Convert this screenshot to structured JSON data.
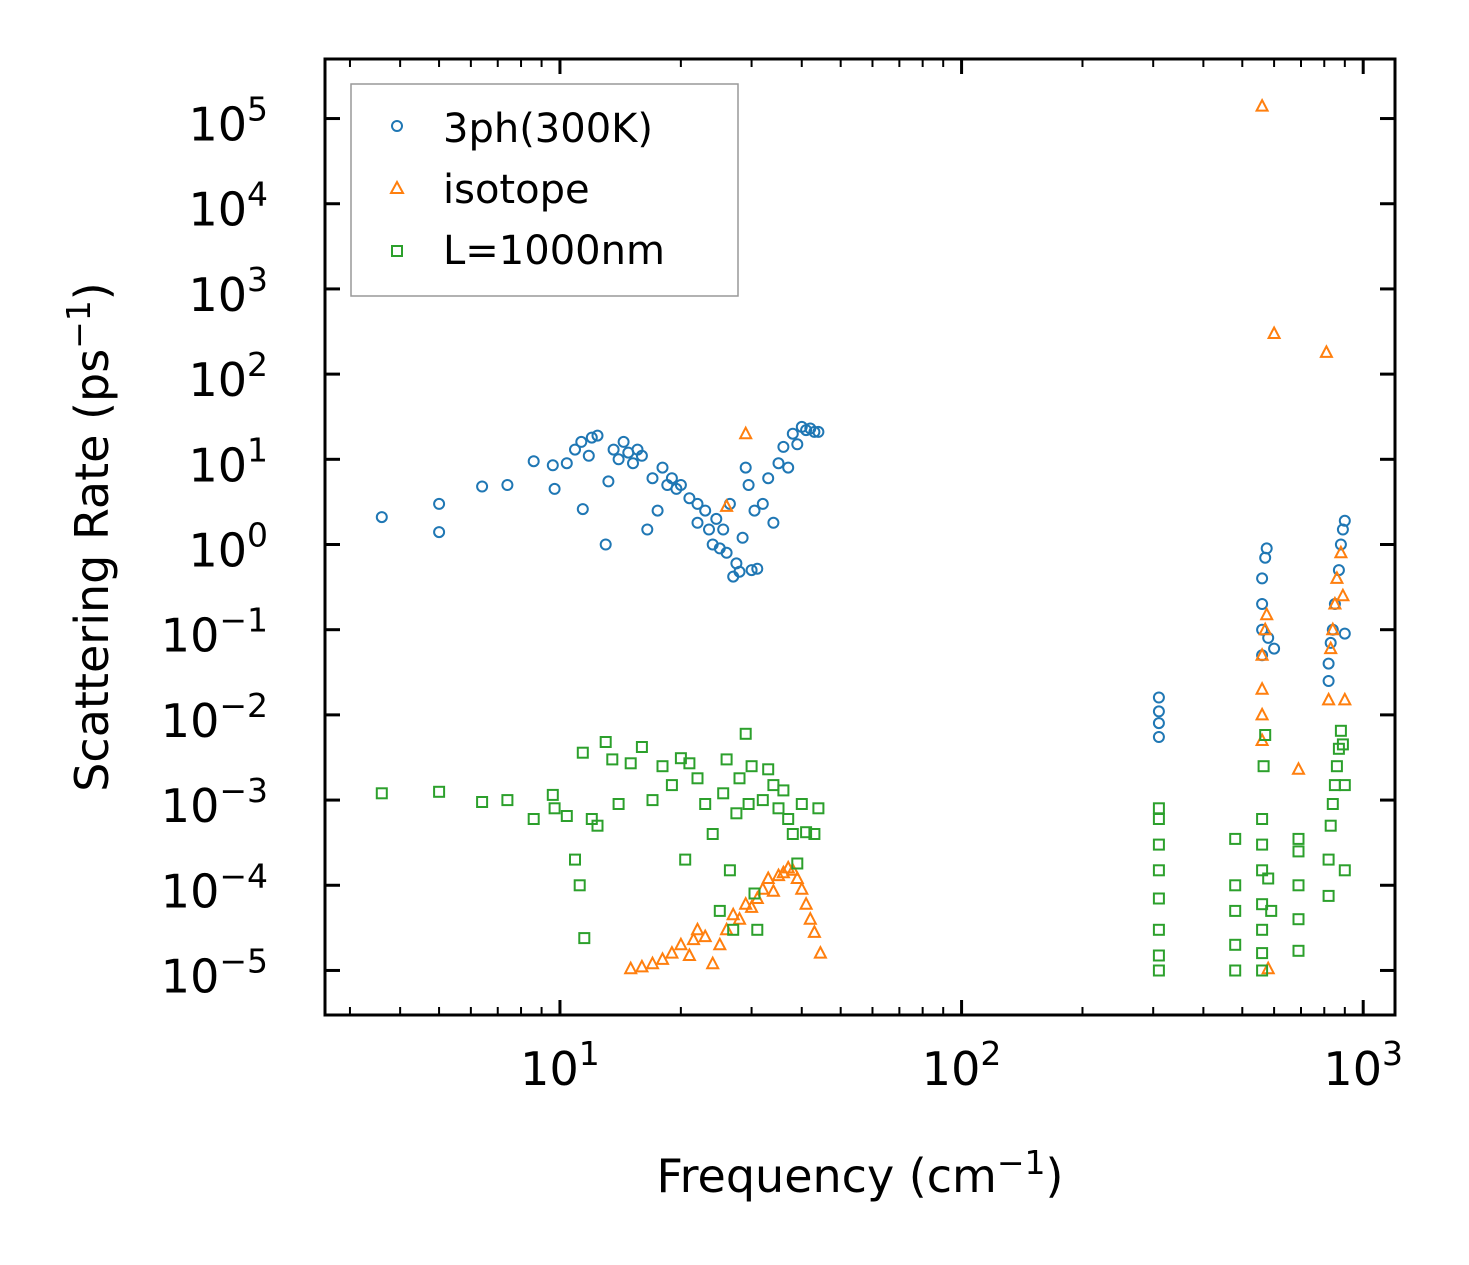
{
  "chart_data": {
    "type": "scatter",
    "title": "",
    "xscale": "log",
    "yscale": "log",
    "xlim": [
      2.6,
      1200
    ],
    "ylim": [
      3e-06,
      500000
    ],
    "xlabel": {
      "text": "Frequency (cm",
      "sup": "−1",
      "close": ")"
    },
    "ylabel": {
      "text": "Scattering Rate (ps",
      "sup": "−1",
      "close": ")"
    },
    "x_ticks": [
      {
        "value": 10,
        "base": "10",
        "exp": "1"
      },
      {
        "value": 100,
        "base": "10",
        "exp": "2"
      },
      {
        "value": 1000,
        "base": "10",
        "exp": "3"
      }
    ],
    "y_ticks": [
      {
        "value": 1e-05,
        "base": "10",
        "exp": "−5"
      },
      {
        "value": 0.0001,
        "base": "10",
        "exp": "−4"
      },
      {
        "value": 0.001,
        "base": "10",
        "exp": "−3"
      },
      {
        "value": 0.01,
        "base": "10",
        "exp": "−2"
      },
      {
        "value": 0.1,
        "base": "10",
        "exp": "−1"
      },
      {
        "value": 1,
        "base": "10",
        "exp": "0"
      },
      {
        "value": 10,
        "base": "10",
        "exp": "1"
      },
      {
        "value": 100,
        "base": "10",
        "exp": "2"
      },
      {
        "value": 1000,
        "base": "10",
        "exp": "3"
      },
      {
        "value": 10000,
        "base": "10",
        "exp": "4"
      },
      {
        "value": 100000,
        "base": "10",
        "exp": "5"
      }
    ],
    "legend_position": "top-left",
    "series": [
      {
        "name": "3ph(300K)",
        "marker": "circle",
        "color": "#1f77b4",
        "points": [
          [
            3.6,
            2.1
          ],
          [
            5.0,
            3.0
          ],
          [
            5.0,
            1.4
          ],
          [
            6.4,
            4.8
          ],
          [
            7.4,
            5.0
          ],
          [
            8.6,
            9.5
          ],
          [
            9.6,
            8.5
          ],
          [
            9.7,
            4.5
          ],
          [
            10.4,
            9.0
          ],
          [
            10.9,
            13.0
          ],
          [
            11.3,
            16.0
          ],
          [
            11.4,
            2.6
          ],
          [
            11.8,
            11.0
          ],
          [
            12.0,
            18.0
          ],
          [
            12.4,
            19.0
          ],
          [
            13.0,
            1.0
          ],
          [
            13.2,
            5.5
          ],
          [
            13.6,
            13.0
          ],
          [
            14.0,
            10.0
          ],
          [
            14.4,
            16.0
          ],
          [
            14.8,
            12.0
          ],
          [
            15.2,
            9.0
          ],
          [
            15.6,
            13.0
          ],
          [
            16.0,
            11.0
          ],
          [
            16.5,
            1.5
          ],
          [
            17.0,
            6.0
          ],
          [
            17.5,
            2.5
          ],
          [
            18.0,
            8.0
          ],
          [
            18.5,
            5.0
          ],
          [
            19.0,
            6.0
          ],
          [
            19.5,
            4.5
          ],
          [
            20.0,
            5.0
          ],
          [
            21.0,
            3.5
          ],
          [
            22.0,
            3.0
          ],
          [
            22.0,
            1.8
          ],
          [
            23.0,
            2.5
          ],
          [
            23.5,
            1.5
          ],
          [
            24.0,
            1.0
          ],
          [
            24.5,
            2.0
          ],
          [
            25.0,
            0.9
          ],
          [
            25.5,
            1.5
          ],
          [
            26.0,
            0.8
          ],
          [
            26.5,
            3.0
          ],
          [
            27.0,
            0.42
          ],
          [
            27.5,
            0.6
          ],
          [
            28.0,
            0.48
          ],
          [
            28.5,
            1.2
          ],
          [
            29.0,
            8.0
          ],
          [
            29.5,
            5.0
          ],
          [
            30.0,
            0.5
          ],
          [
            30.5,
            2.5
          ],
          [
            31.0,
            0.52
          ],
          [
            32.0,
            3.0
          ],
          [
            33.0,
            6.0
          ],
          [
            34.0,
            1.8
          ],
          [
            35.0,
            9.0
          ],
          [
            36.0,
            14.0
          ],
          [
            37.0,
            8.0
          ],
          [
            38.0,
            20.0
          ],
          [
            39.0,
            15.0
          ],
          [
            40.0,
            24.0
          ],
          [
            41.0,
            22.0
          ],
          [
            42.0,
            23.0
          ],
          [
            43.0,
            21.0
          ],
          [
            44.0,
            21.0
          ],
          [
            310,
            0.0055
          ],
          [
            310,
            0.008
          ],
          [
            310,
            0.011
          ],
          [
            310,
            0.016
          ],
          [
            560,
            0.05
          ],
          [
            560,
            0.1
          ],
          [
            560,
            0.2
          ],
          [
            560,
            0.4
          ],
          [
            570,
            0.7
          ],
          [
            575,
            0.9
          ],
          [
            580,
            0.08
          ],
          [
            600,
            0.06
          ],
          [
            820,
            0.025
          ],
          [
            820,
            0.04
          ],
          [
            830,
            0.07
          ],
          [
            840,
            0.1
          ],
          [
            850,
            0.2
          ],
          [
            870,
            0.5
          ],
          [
            880,
            1.0
          ],
          [
            890,
            1.5
          ],
          [
            900,
            1.9
          ],
          [
            900,
            0.09
          ]
        ]
      },
      {
        "name": "isotope",
        "marker": "triangle",
        "color": "#ff7f0e",
        "points": [
          [
            15.0,
            1.05e-05
          ],
          [
            16.0,
            1.1e-05
          ],
          [
            17.0,
            1.2e-05
          ],
          [
            18.0,
            1.35e-05
          ],
          [
            19.0,
            1.6e-05
          ],
          [
            20.0,
            2e-05
          ],
          [
            21.0,
            1.5e-05
          ],
          [
            21.5,
            2.3e-05
          ],
          [
            22.0,
            3e-05
          ],
          [
            23.0,
            2.5e-05
          ],
          [
            24.0,
            1.2e-05
          ],
          [
            25.0,
            2e-05
          ],
          [
            26.0,
            3e-05
          ],
          [
            26.0,
            2.8
          ],
          [
            27.0,
            4.5e-05
          ],
          [
            28.0,
            4e-05
          ],
          [
            29.0,
            6e-05
          ],
          [
            30.0,
            5.5e-05
          ],
          [
            31.0,
            7e-05
          ],
          [
            32.0,
            9e-05
          ],
          [
            33.0,
            0.00012
          ],
          [
            34.0,
            8.5e-05
          ],
          [
            35.0,
            0.00013
          ],
          [
            36.0,
            0.00014
          ],
          [
            37.0,
            0.00016
          ],
          [
            38.0,
            0.00015
          ],
          [
            39.0,
            0.00012
          ],
          [
            40.0,
            9e-05
          ],
          [
            41.0,
            6e-05
          ],
          [
            42.0,
            4e-05
          ],
          [
            43.0,
            2.8e-05
          ],
          [
            44.5,
            1.6e-05
          ],
          [
            29.0,
            20.0
          ],
          [
            560,
            0.005
          ],
          [
            560,
            0.01
          ],
          [
            560,
            0.02
          ],
          [
            560,
            0.05
          ],
          [
            570,
            0.1
          ],
          [
            575,
            0.15
          ],
          [
            560,
            140000
          ],
          [
            600,
            300
          ],
          [
            690,
            0.0023
          ],
          [
            810,
            180
          ],
          [
            580,
            1.05e-05
          ],
          [
            820,
            0.015
          ],
          [
            830,
            0.06
          ],
          [
            840,
            0.1
          ],
          [
            850,
            0.2
          ],
          [
            860,
            0.4
          ],
          [
            880,
            0.8
          ],
          [
            890,
            0.25
          ],
          [
            900,
            0.015
          ]
        ]
      },
      {
        "name": "L=1000nm",
        "marker": "square",
        "color": "#2ca02c",
        "points": [
          [
            3.6,
            0.0012
          ],
          [
            5.0,
            0.00125
          ],
          [
            6.4,
            0.00095
          ],
          [
            7.4,
            0.001
          ],
          [
            8.6,
            0.0006
          ],
          [
            9.6,
            0.00115
          ],
          [
            9.7,
            0.0008
          ],
          [
            10.4,
            0.00065
          ],
          [
            10.9,
            0.0002
          ],
          [
            11.2,
            0.0001
          ],
          [
            11.5,
            2.4e-05
          ],
          [
            11.4,
            0.0036
          ],
          [
            12.0,
            0.0006
          ],
          [
            12.4,
            0.0005
          ],
          [
            13.0,
            0.0048
          ],
          [
            13.5,
            0.003
          ],
          [
            14.0,
            0.0009
          ],
          [
            15.0,
            0.0027
          ],
          [
            16.0,
            0.0042
          ],
          [
            17.0,
            0.001
          ],
          [
            18.0,
            0.0025
          ],
          [
            19.0,
            0.0015
          ],
          [
            20.0,
            0.0031
          ],
          [
            20.5,
            0.0002
          ],
          [
            21.0,
            0.0027
          ],
          [
            22.0,
            0.0018
          ],
          [
            23.0,
            0.0009
          ],
          [
            24.0,
            0.0004
          ],
          [
            25.0,
            5e-05
          ],
          [
            25.5,
            0.0012
          ],
          [
            26.0,
            0.003
          ],
          [
            26.5,
            0.00015
          ],
          [
            27.0,
            3e-05
          ],
          [
            27.5,
            0.0007
          ],
          [
            28.0,
            0.0018
          ],
          [
            29.0,
            0.006
          ],
          [
            29.5,
            0.0009
          ],
          [
            30.0,
            0.0025
          ],
          [
            30.5,
            8e-05
          ],
          [
            31.0,
            3e-05
          ],
          [
            32.0,
            0.001
          ],
          [
            33.0,
            0.0023
          ],
          [
            34.0,
            0.0015
          ],
          [
            35.0,
            0.0008
          ],
          [
            36.0,
            0.0013
          ],
          [
            37.0,
            0.0006
          ],
          [
            38.0,
            0.0004
          ],
          [
            39.0,
            0.00018
          ],
          [
            40.0,
            0.0009
          ],
          [
            41.0,
            0.00042
          ],
          [
            43.0,
            0.0004
          ],
          [
            44.0,
            0.0008
          ],
          [
            310,
            1e-05
          ],
          [
            310,
            1.5e-05
          ],
          [
            310,
            3e-05
          ],
          [
            310,
            7e-05
          ],
          [
            310,
            0.00015
          ],
          [
            310,
            0.0003
          ],
          [
            310,
            0.0006
          ],
          [
            310,
            0.0008
          ],
          [
            480,
            1e-05
          ],
          [
            480,
            2e-05
          ],
          [
            480,
            5e-05
          ],
          [
            480,
            0.0001
          ],
          [
            480,
            0.00035
          ],
          [
            560,
            1e-05
          ],
          [
            560,
            1.6e-05
          ],
          [
            560,
            3e-05
          ],
          [
            560,
            6e-05
          ],
          [
            560,
            0.00015
          ],
          [
            560,
            0.0003
          ],
          [
            560,
            0.0006
          ],
          [
            565,
            0.0025
          ],
          [
            570,
            0.0058
          ],
          [
            580,
            0.00012
          ],
          [
            590,
            5e-05
          ],
          [
            690,
            1.7e-05
          ],
          [
            690,
            4e-05
          ],
          [
            690,
            0.0001
          ],
          [
            690,
            0.00025
          ],
          [
            690,
            0.00035
          ],
          [
            820,
            7.5e-05
          ],
          [
            820,
            0.0002
          ],
          [
            830,
            0.0005
          ],
          [
            840,
            0.0009
          ],
          [
            850,
            0.0015
          ],
          [
            860,
            0.0025
          ],
          [
            870,
            0.004
          ],
          [
            880,
            0.0065
          ],
          [
            890,
            0.0045
          ],
          [
            900,
            0.0015
          ],
          [
            900,
            0.00015
          ]
        ]
      }
    ]
  }
}
